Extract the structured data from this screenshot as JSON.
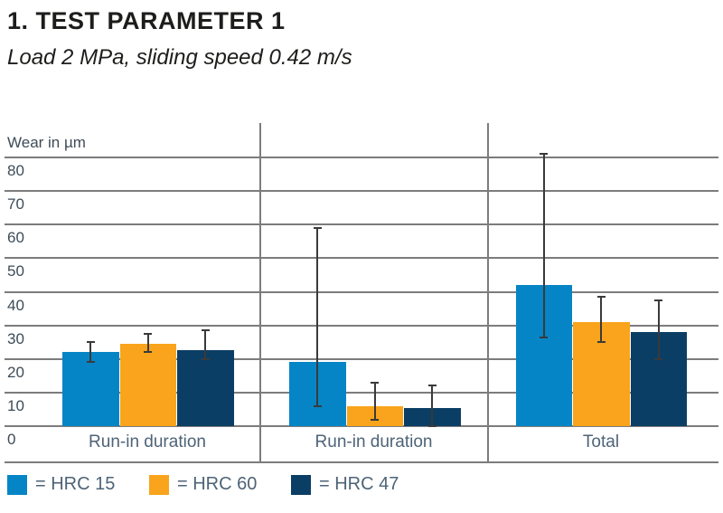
{
  "page": {
    "title": "1. TEST PARAMETER 1",
    "subtitle": "Load 2 MPa, sliding speed 0.42 m/s"
  },
  "chart_data": {
    "type": "bar",
    "title": "1. TEST PARAMETER 1",
    "subtitle": "Load 2 MPa, sliding speed 0.42 m/s",
    "ylabel": "Wear in µm",
    "xlabel": "",
    "ylim": [
      0,
      80
    ],
    "yticks": [
      80,
      70,
      60,
      50,
      40,
      30,
      20,
      10,
      0
    ],
    "grid": true,
    "legend_position": "bottom",
    "error_bars": true,
    "categories": [
      "Run-in duration",
      "Run-in duration",
      "Total"
    ],
    "series": [
      {
        "name": "HRC 15",
        "legend_label": "= HRC 15",
        "color": "#0685C6",
        "values": [
          22,
          19,
          42
        ],
        "error_low": [
          19,
          6,
          26.5
        ],
        "error_high": [
          25,
          59,
          81
        ]
      },
      {
        "name": "HRC 60",
        "legend_label": "= HRC 60",
        "color": "#F9A41C",
        "values": [
          24.5,
          6,
          31
        ],
        "error_low": [
          22,
          2,
          25
        ],
        "error_high": [
          27.5,
          13,
          38.5
        ]
      },
      {
        "name": "HRC 47",
        "legend_label": "= HRC 47",
        "color": "#0B3E64",
        "values": [
          22.5,
          5.5,
          28
        ],
        "error_low": [
          20,
          0,
          20
        ],
        "error_high": [
          28.5,
          12,
          37.5
        ]
      }
    ]
  },
  "colors": {
    "grid": "#7c7c7c",
    "error_bar": "#3a3a3a",
    "tick_text": "#3e4b57",
    "category_text": "#4e6377",
    "title_text": "#1d1d1b"
  }
}
